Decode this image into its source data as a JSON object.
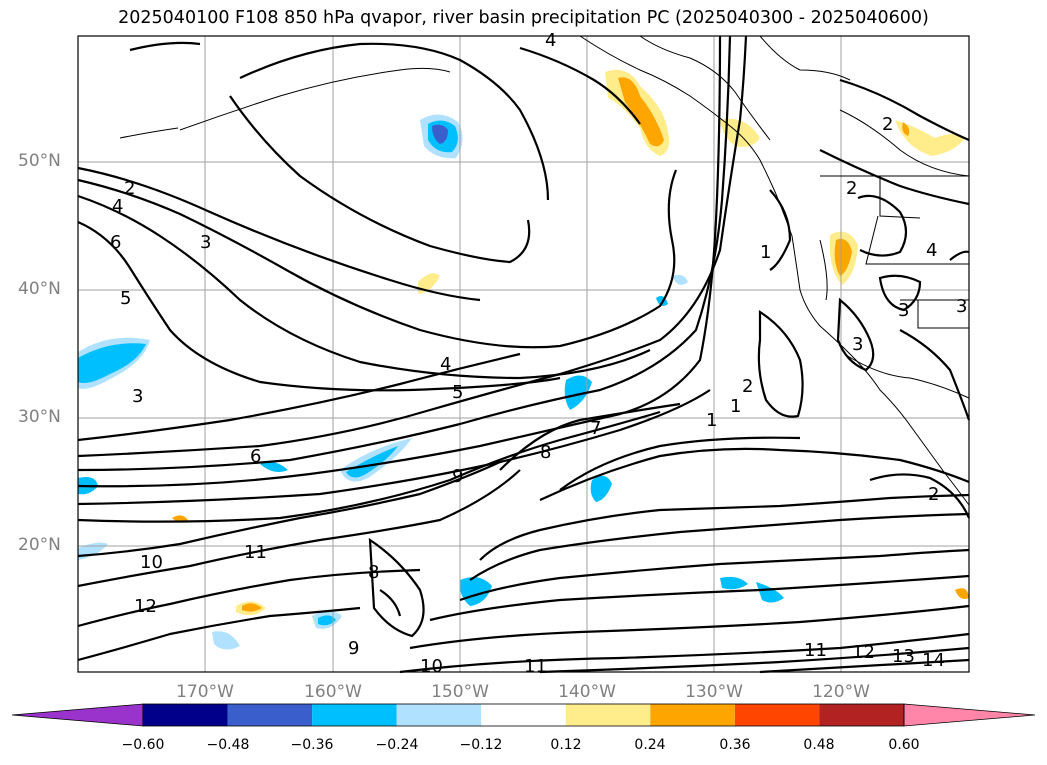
{
  "title": "2025040100 F108 850 hPa qvapor, river basin precipitation PC (2025040300 - 2025040600)",
  "map": {
    "lat_labels": [
      "50°N",
      "40°N",
      "30°N",
      "20°N"
    ],
    "lon_labels": [
      "170°W",
      "160°W",
      "150°W",
      "140°W",
      "130°W",
      "120°W"
    ],
    "contour_labels": [
      "4",
      "2",
      "4",
      "6",
      "3",
      "5",
      "3",
      "4",
      "5",
      "6",
      "9",
      "8",
      "7",
      "10",
      "11",
      "12",
      "8",
      "9",
      "10",
      "11",
      "11",
      "12",
      "13",
      "14",
      "1",
      "2",
      "1",
      "1",
      "2",
      "2",
      "3",
      "3",
      "2",
      "4",
      "3"
    ],
    "gridlines": true
  },
  "colorbar": {
    "ticks": [
      "−0.60",
      "−0.48",
      "−0.36",
      "−0.24",
      "−0.12",
      "0.12",
      "0.24",
      "0.36",
      "0.48",
      "0.60"
    ],
    "colors": [
      "#9933cc",
      "#00008b",
      "#3a5fcd",
      "#00bfff",
      "#b0e2ff",
      "#ffffff",
      "#ffec8b",
      "#ffa500",
      "#ff4500",
      "#b22222",
      "#ff86a8"
    ]
  }
}
